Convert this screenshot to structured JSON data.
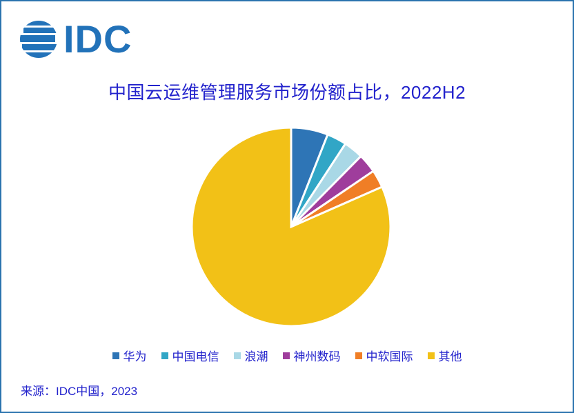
{
  "logo": {
    "text": "IDC",
    "color": "#2272B9"
  },
  "title": {
    "text": "中国云运维管理服务市场份额占比，2022H2",
    "color": "#2222CC"
  },
  "chart_data": {
    "type": "pie",
    "title": "中国云运维管理服务市场份额占比，2022H2",
    "start_angle_deg": 0,
    "direction": "clockwise",
    "slice_separator": "white gap",
    "legend_position": "bottom",
    "slices": [
      {
        "label": "华为",
        "value_pct": 6.0,
        "color": "#2E75B6"
      },
      {
        "label": "中国电信",
        "value_pct": 3.2,
        "color": "#31A6C6"
      },
      {
        "label": "浪潮",
        "value_pct": 3.2,
        "color": "#A9D8E6"
      },
      {
        "label": "神州数码",
        "value_pct": 3.1,
        "color": "#9F3D9C"
      },
      {
        "label": "中软国际",
        "value_pct": 2.9,
        "color": "#F07E26"
      },
      {
        "label": "其他",
        "value_pct": 81.6,
        "color": "#F2C117"
      }
    ]
  },
  "source": {
    "text": "来源：IDC中国，2023"
  },
  "frame": {
    "border_color": "#2B74AE",
    "background": "#FFFFFF"
  }
}
